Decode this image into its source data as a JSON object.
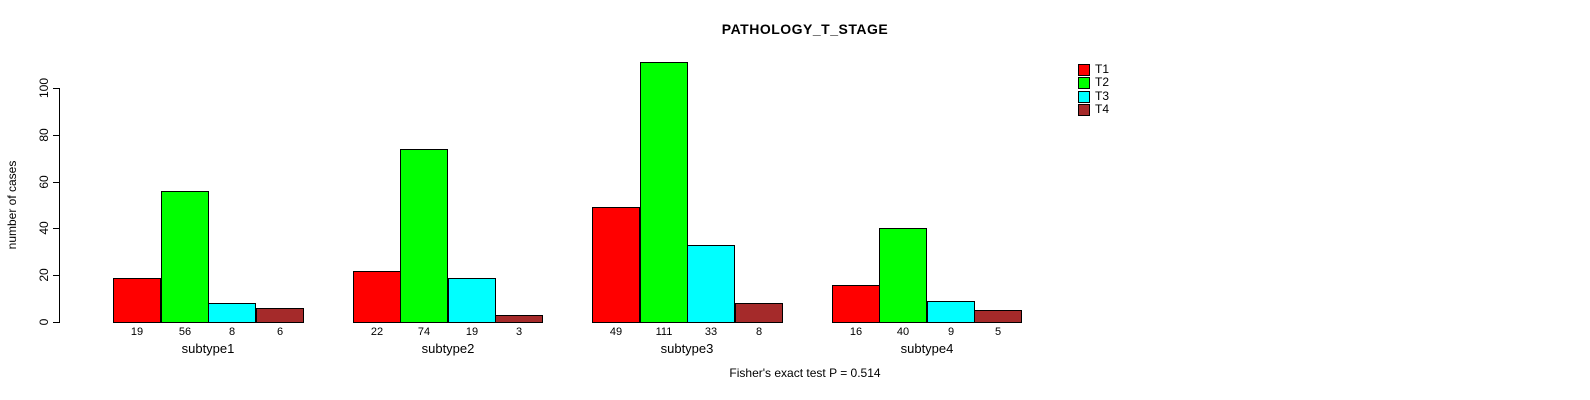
{
  "title": "PATHOLOGY_T_STAGE",
  "ylabel": "number of cases",
  "footer": "Fisher's exact test P = 0.514",
  "chart_data": {
    "type": "bar",
    "title": "PATHOLOGY_T_STAGE",
    "xlabel": "",
    "ylabel": "number of cases",
    "categories": [
      "subtype1",
      "subtype2",
      "subtype3",
      "subtype4"
    ],
    "series": [
      {
        "name": "T1",
        "color": "#FF0000",
        "values": [
          19,
          22,
          49,
          16
        ]
      },
      {
        "name": "T2",
        "color": "#00FF00",
        "values": [
          56,
          74,
          111,
          40
        ]
      },
      {
        "name": "T3",
        "color": "#00FFFF",
        "values": [
          8,
          19,
          33,
          9
        ]
      },
      {
        "name": "T4",
        "color": "#A52A2A",
        "values": [
          6,
          3,
          8,
          5
        ]
      }
    ],
    "yticks": [
      0,
      20,
      40,
      60,
      80,
      100
    ],
    "ylim": [
      0,
      115
    ],
    "grid": false,
    "bar_value_labels": true,
    "legend_position": "top-right",
    "annotation": "Fisher's exact test P = 0.514"
  }
}
